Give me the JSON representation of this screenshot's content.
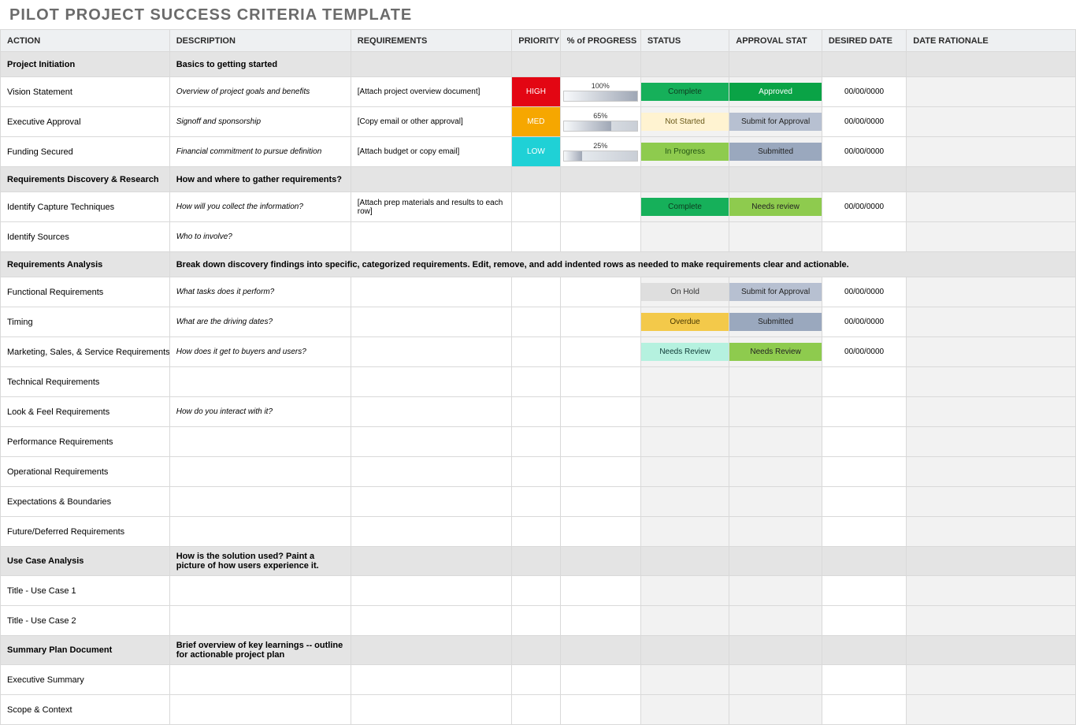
{
  "title": "PILOT PROJECT SUCCESS CRITERIA TEMPLATE",
  "columns": [
    "ACTION",
    "DESCRIPTION",
    "REQUIREMENTS",
    "PRIORITY",
    "% of PROGRESS",
    "STATUS",
    "APPROVAL STAT",
    "DESIRED DATE",
    "DATE RATIONALE"
  ],
  "colors": {
    "priority": {
      "HIGH": "#e30613",
      "MED": "#f6a700",
      "LOW": "#1fd1d6"
    },
    "status": {
      "Complete": "#16b05a",
      "Not Started": "#fff3d1",
      "In Progress": "#8ecb4e",
      "On Hold": "#dedede",
      "Overdue": "#f3c94a",
      "Needs Review": "#b5f1df"
    },
    "approval": {
      "Approved": "#0aa346",
      "Submit for Approval": "#b7c0d1",
      "Submitted": "#9aa8be",
      "Needs review": "#8ecb4e",
      "Needs Review": "#8ecb4e"
    },
    "approval_text": {
      "Approved": "#ffffff",
      "Submit for Approval": "#222222",
      "Submitted": "#222222",
      "Needs review": "#222222",
      "Needs Review": "#222222"
    },
    "status_text": {
      "Complete": "#0d3a1f",
      "Not Started": "#6b5a1a",
      "In Progress": "#245514",
      "On Hold": "#333333",
      "Overdue": "#4a3800",
      "Needs Review": "#0d3a36"
    }
  },
  "rows": [
    {
      "type": "section",
      "action": "Project Initiation",
      "desc": "Basics to getting started"
    },
    {
      "type": "row",
      "action": "Vision Statement",
      "desc": "Overview of project goals and benefits",
      "req": "[Attach project overview document]",
      "priority": "HIGH",
      "progress": 100,
      "status": "Complete",
      "approval": "Approved",
      "date": "00/00/0000"
    },
    {
      "type": "row",
      "action": "Executive Approval",
      "desc": "Signoff and sponsorship",
      "req": "[Copy email or other approval]",
      "priority": "MED",
      "progress": 65,
      "status": "Not Started",
      "approval": "Submit for Approval",
      "date": "00/00/0000"
    },
    {
      "type": "row",
      "action": "Funding Secured",
      "desc": "Financial commitment to pursue definition",
      "req": "[Attach budget or copy email]",
      "priority": "LOW",
      "progress": 25,
      "status": "In Progress",
      "approval": "Submitted",
      "date": "00/00/0000"
    },
    {
      "type": "section",
      "action": "Requirements Discovery & Research",
      "desc": "How and where to gather requirements?"
    },
    {
      "type": "row",
      "action": "Identify Capture Techniques",
      "desc": "How will you collect the information?",
      "req": "[Attach prep materials and results to each row]",
      "reqWrap": true,
      "status": "Complete",
      "approval": "Needs review",
      "date": "00/00/0000"
    },
    {
      "type": "row",
      "action": "Identify Sources",
      "desc": "Who to involve?"
    },
    {
      "type": "section",
      "action": "Requirements Analysis",
      "desc": "Break down discovery findings into specific, categorized requirements. Edit, remove, and add indented rows as needed to make requirements clear and actionable.",
      "descSpan": true
    },
    {
      "type": "row",
      "action": "Functional Requirements",
      "desc": "What tasks does it perform?",
      "status": "On Hold",
      "approval": "Submit for Approval",
      "date": "00/00/0000"
    },
    {
      "type": "row",
      "action": "Timing",
      "desc": "What are the driving dates?",
      "status": "Overdue",
      "approval": "Submitted",
      "date": "00/00/0000"
    },
    {
      "type": "row",
      "action": "Marketing, Sales, & Service Requirements",
      "desc": "How does it get to buyers and users?",
      "status": "Needs Review",
      "approval": "Needs Review",
      "date": "00/00/0000"
    },
    {
      "type": "row",
      "action": "Technical Requirements",
      "desc": ""
    },
    {
      "type": "row",
      "action": "Look & Feel Requirements",
      "desc": "How do you interact with it?"
    },
    {
      "type": "row",
      "action": "Performance Requirements",
      "desc": ""
    },
    {
      "type": "row",
      "action": "Operational Requirements",
      "desc": ""
    },
    {
      "type": "row",
      "action": "Expectations & Boundaries",
      "desc": ""
    },
    {
      "type": "row",
      "action": "Future/Deferred Requirements",
      "desc": ""
    },
    {
      "type": "section",
      "action": "Use Case Analysis",
      "desc": "How is the solution used? Paint a picture of how users experience it."
    },
    {
      "type": "row",
      "action": "Title - Use Case 1",
      "desc": ""
    },
    {
      "type": "row",
      "action": "Title - Use Case 2",
      "desc": ""
    },
    {
      "type": "section",
      "action": "Summary Plan Document",
      "desc": "Brief overview of key learnings -- outline for actionable project plan"
    },
    {
      "type": "row",
      "action": "Executive Summary",
      "desc": ""
    },
    {
      "type": "row",
      "action": "Scope & Context",
      "desc": ""
    }
  ]
}
